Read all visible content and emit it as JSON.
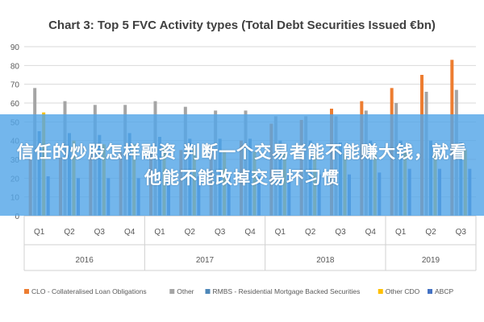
{
  "overlay_text": "信任的炒股怎样融资 判断一个交易者能不能赚大钱，就看他能不能改掉交易坏习惯",
  "chart_data": {
    "type": "bar",
    "title": "Chart 3: Top 5 FVC Activity types (Total Debt Securities Issued €bn)",
    "xlabel": "",
    "ylabel": "",
    "ylim": [
      0,
      90
    ],
    "yticks": [
      0,
      10,
      20,
      30,
      40,
      50,
      60,
      70,
      80,
      90
    ],
    "grid": true,
    "legend_position": "bottom",
    "categories": [
      "Q1",
      "Q2",
      "Q3",
      "Q4",
      "Q1",
      "Q2",
      "Q3",
      "Q4",
      "Q1",
      "Q2",
      "Q3",
      "Q4",
      "Q1",
      "Q2",
      "Q3"
    ],
    "groups": [
      {
        "label": "2016",
        "count": 4
      },
      {
        "label": "2017",
        "count": 4
      },
      {
        "label": "2018",
        "count": 4
      },
      {
        "label": "2019",
        "count": 3
      }
    ],
    "series": [
      {
        "name": "CLO - Collateralised Loan Obligations",
        "color": "#ED7D31",
        "values": [
          30,
          31,
          33,
          34,
          33,
          35,
          38,
          40,
          49,
          51,
          57,
          61,
          68,
          75,
          83
        ]
      },
      {
        "name": "Other",
        "color": "#A5A5A5",
        "values": [
          68,
          61,
          59,
          59,
          61,
          58,
          56,
          56,
          53,
          53,
          53,
          56,
          60,
          66,
          67
        ]
      },
      {
        "name": "RMBS - Residential Mortgage Backed Securities",
        "color": "#4E87B8",
        "values": [
          45,
          44,
          43,
          44,
          42,
          41,
          41,
          41,
          40,
          40,
          39,
          40,
          40,
          40,
          39
        ]
      },
      {
        "name": "Other CDO",
        "color": "#FFC000",
        "values": [
          55,
          40,
          38,
          38,
          37,
          36,
          35,
          34,
          33,
          33,
          33,
          33,
          34,
          34,
          35
        ]
      },
      {
        "name": "ABCP",
        "color": "#4472C4",
        "values": [
          21,
          20,
          20,
          20,
          20,
          21,
          21,
          21,
          22,
          22,
          22,
          23,
          25,
          25,
          25
        ]
      }
    ]
  }
}
